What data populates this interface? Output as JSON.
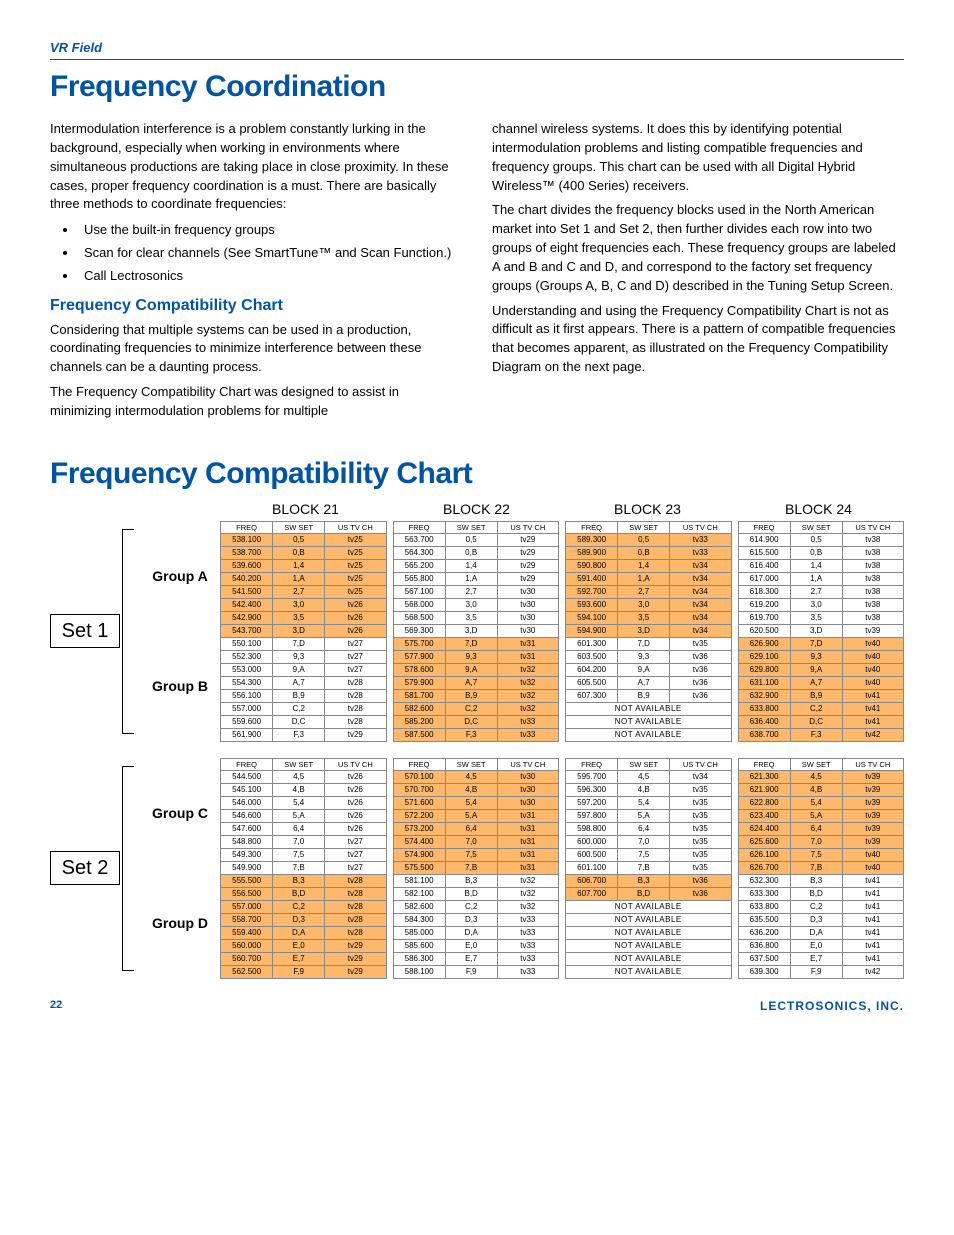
{
  "header": {
    "label": "VR Field"
  },
  "title1": "Frequency Coordination",
  "col_left": {
    "p1": "Intermodulation interference is a problem constantly lurking in the background, especially when working in environments where simultaneous productions are taking place in close proximity.  In these cases, proper frequency coordination is a must.  There are basically three methods to coordinate frequencies:",
    "bullets": [
      "Use the built-in frequency groups",
      "Scan for clear channels (See SmartTune™ and Scan Function.)",
      "Call Lectrosonics"
    ],
    "h2": "Frequency Compatibility Chart",
    "p2": "Considering that multiple systems can be used in a production, coordinating frequencies to minimize interference between these channels can be a daunting process.",
    "p3": "The Frequency Compatibility Chart was designed to assist in minimizing intermodulation problems for multiple"
  },
  "col_right": {
    "p1": "channel wireless systems.  It does this by identifying potential intermodulation problems and listing compatible  frequencies and frequency groups.  This chart can be used with all Digital Hybrid Wireless™ (400 Series) receivers.",
    "p2": "The chart divides the frequency blocks used in the North American market into Set 1 and Set 2, then further divides each row into two groups of eight frequencies each.  These frequency groups are labeled A and B and C and D, and correspond to the factory set frequency groups (Groups A, B, C and D) described in the Tuning Setup Screen.",
    "p3": "Understanding and using the Frequency Compatibility Chart is not as difficult as it first appears.  There is a pattern of compatible frequencies that becomes apparent, as illustrated on the Frequency Compatibility Diagram on the next page."
  },
  "title2": "Frequency Compatibility Chart",
  "block_labels": [
    "BLOCK 21",
    "BLOCK 22",
    "BLOCK 23",
    "BLOCK 24"
  ],
  "col_headers": [
    "FREQ",
    "SW SET",
    "US TV CH"
  ],
  "sets": [
    {
      "label": "Set 1",
      "groups": [
        "Group A",
        "Group B"
      ],
      "blocks": [
        {
          "hl": "A",
          "rows": [
            [
              "538.100",
              "0,5",
              "tv25"
            ],
            [
              "538.700",
              "0,B",
              "tv25"
            ],
            [
              "539.600",
              "1,4",
              "tv25"
            ],
            [
              "540.200",
              "1,A",
              "tv25"
            ],
            [
              "541.500",
              "2,7",
              "tv25"
            ],
            [
              "542.400",
              "3,0",
              "tv26"
            ],
            [
              "542.900",
              "3,5",
              "tv26"
            ],
            [
              "543.700",
              "3,D",
              "tv26"
            ],
            [
              "550.100",
              "7,D",
              "tv27"
            ],
            [
              "552.300",
              "9,3",
              "tv27"
            ],
            [
              "553.000",
              "9,A",
              "tv27"
            ],
            [
              "554.300",
              "A,7",
              "tv28"
            ],
            [
              "556.100",
              "B,9",
              "tv28"
            ],
            [
              "557.000",
              "C,2",
              "tv28"
            ],
            [
              "559.600",
              "D,C",
              "tv28"
            ],
            [
              "561.900",
              "F,3",
              "tv29"
            ]
          ]
        },
        {
          "hl": "B",
          "rows": [
            [
              "563.700",
              "0,5",
              "tv29"
            ],
            [
              "564.300",
              "0,B",
              "tv29"
            ],
            [
              "565.200",
              "1,4",
              "tv29"
            ],
            [
              "565.800",
              "1,A",
              "tv29"
            ],
            [
              "567.100",
              "2,7",
              "tv30"
            ],
            [
              "568.000",
              "3,0",
              "tv30"
            ],
            [
              "568.500",
              "3,5",
              "tv30"
            ],
            [
              "569.300",
              "3,D",
              "tv30"
            ],
            [
              "575.700",
              "7,D",
              "tv31"
            ],
            [
              "577.900",
              "9,3",
              "tv31"
            ],
            [
              "578.600",
              "9,A",
              "tv32"
            ],
            [
              "579.900",
              "A,7",
              "tv32"
            ],
            [
              "581.700",
              "B,9",
              "tv32"
            ],
            [
              "582.600",
              "C,2",
              "tv32"
            ],
            [
              "585.200",
              "D,C",
              "tv33"
            ],
            [
              "587.500",
              "F,3",
              "tv33"
            ]
          ]
        },
        {
          "hl": "A",
          "na": true,
          "rows": [
            [
              "589.300",
              "0,5",
              "tv33"
            ],
            [
              "589.900",
              "0,B",
              "tv33"
            ],
            [
              "590.800",
              "1,4",
              "tv34"
            ],
            [
              "591.400",
              "1,A",
              "tv34"
            ],
            [
              "592.700",
              "2,7",
              "tv34"
            ],
            [
              "593.600",
              "3,0",
              "tv34"
            ],
            [
              "594.100",
              "3,5",
              "tv34"
            ],
            [
              "594.900",
              "3,D",
              "tv34"
            ],
            [
              "601.300",
              "7,D",
              "tv35"
            ],
            [
              "603.500",
              "9,3",
              "tv36"
            ],
            [
              "604.200",
              "9,A",
              "tv36"
            ],
            [
              "605.500",
              "A,7",
              "tv36"
            ],
            [
              "607.300",
              "B,9",
              "tv36"
            ],
            [
              "NA"
            ],
            [
              "NA"
            ],
            [
              "NA"
            ]
          ]
        },
        {
          "hl": "B",
          "rows": [
            [
              "614.900",
              "0,5",
              "tv38"
            ],
            [
              "615.500",
              "0,B",
              "tv38"
            ],
            [
              "616.400",
              "1,4",
              "tv38"
            ],
            [
              "617.000",
              "1,A",
              "tv38"
            ],
            [
              "618.300",
              "2,7",
              "tv38"
            ],
            [
              "619.200",
              "3,0",
              "tv38"
            ],
            [
              "619.700",
              "3,5",
              "tv38"
            ],
            [
              "620.500",
              "3,D",
              "tv39"
            ],
            [
              "626.900",
              "7,D",
              "tv40"
            ],
            [
              "629.100",
              "9,3",
              "tv40"
            ],
            [
              "629.800",
              "9,A",
              "tv40"
            ],
            [
              "631.100",
              "A,7",
              "tv40"
            ],
            [
              "632.900",
              "B,9",
              "tv41"
            ],
            [
              "633.800",
              "C,2",
              "tv41"
            ],
            [
              "636.400",
              "D,C",
              "tv41"
            ],
            [
              "638.700",
              "F,3",
              "tv42"
            ]
          ]
        }
      ]
    },
    {
      "label": "Set 2",
      "groups": [
        "Group C",
        "Group D"
      ],
      "blocks": [
        {
          "hl": "B",
          "rows": [
            [
              "544.500",
              "4,5",
              "tv26"
            ],
            [
              "545.100",
              "4,B",
              "tv26"
            ],
            [
              "546.000",
              "5,4",
              "tv26"
            ],
            [
              "546.600",
              "5,A",
              "tv26"
            ],
            [
              "547.600",
              "6,4",
              "tv26"
            ],
            [
              "548.800",
              "7,0",
              "tv27"
            ],
            [
              "549.300",
              "7,5",
              "tv27"
            ],
            [
              "549.900",
              "7,B",
              "tv27"
            ],
            [
              "555.500",
              "B,3",
              "tv28"
            ],
            [
              "556.500",
              "B,D",
              "tv28"
            ],
            [
              "557.000",
              "C,2",
              "tv28"
            ],
            [
              "558.700",
              "D,3",
              "tv28"
            ],
            [
              "559.400",
              "D,A",
              "tv28"
            ],
            [
              "560.000",
              "E,0",
              "tv29"
            ],
            [
              "560.700",
              "E,7",
              "tv29"
            ],
            [
              "562.500",
              "F,9",
              "tv29"
            ]
          ]
        },
        {
          "hl": "A",
          "rows": [
            [
              "570.100",
              "4,5",
              "tv30"
            ],
            [
              "570.700",
              "4,B",
              "tv30"
            ],
            [
              "571.600",
              "5,4",
              "tv30"
            ],
            [
              "572.200",
              "5,A",
              "tv31"
            ],
            [
              "573.200",
              "6,4",
              "tv31"
            ],
            [
              "574.400",
              "7,0",
              "tv31"
            ],
            [
              "574.900",
              "7,5",
              "tv31"
            ],
            [
              "575.500",
              "7,B",
              "tv31"
            ],
            [
              "581.100",
              "B,3",
              "tv32"
            ],
            [
              "582.100",
              "B,D",
              "tv32"
            ],
            [
              "582.600",
              "C,2",
              "tv32"
            ],
            [
              "584.300",
              "D,3",
              "tv33"
            ],
            [
              "585.000",
              "D,A",
              "tv33"
            ],
            [
              "585.600",
              "E,0",
              "tv33"
            ],
            [
              "586.300",
              "E,7",
              "tv33"
            ],
            [
              "588.100",
              "F,9",
              "tv33"
            ]
          ]
        },
        {
          "hl": "B",
          "na23": true,
          "rows": [
            [
              "595.700",
              "4,5",
              "tv34"
            ],
            [
              "596.300",
              "4,B",
              "tv35"
            ],
            [
              "597.200",
              "5,4",
              "tv35"
            ],
            [
              "597.800",
              "5,A",
              "tv35"
            ],
            [
              "598.800",
              "6,4",
              "tv35"
            ],
            [
              "600.000",
              "7,0",
              "tv35"
            ],
            [
              "600.500",
              "7,5",
              "tv35"
            ],
            [
              "601.100",
              "7,B",
              "tv35"
            ],
            [
              "606.700",
              "B,3",
              "tv36"
            ],
            [
              "607.700",
              "B,D",
              "tv36"
            ],
            [
              "NA"
            ],
            [
              "NA"
            ],
            [
              "NA"
            ],
            [
              "NA"
            ],
            [
              "NA"
            ],
            [
              "NA"
            ]
          ]
        },
        {
          "hl": "A",
          "rows": [
            [
              "621.300",
              "4,5",
              "tv39"
            ],
            [
              "621.900",
              "4,B",
              "tv39"
            ],
            [
              "622.800",
              "5,4",
              "tv39"
            ],
            [
              "623.400",
              "5,A",
              "tv39"
            ],
            [
              "624.400",
              "6,4",
              "tv39"
            ],
            [
              "625.600",
              "7,0",
              "tv39"
            ],
            [
              "626.100",
              "7,5",
              "tv40"
            ],
            [
              "626.700",
              "7,B",
              "tv40"
            ],
            [
              "632.300",
              "B,3",
              "tv41"
            ],
            [
              "633.300",
              "B,D",
              "tv41"
            ],
            [
              "633.800",
              "C,2",
              "tv41"
            ],
            [
              "635.500",
              "D,3",
              "tv41"
            ],
            [
              "636.200",
              "D,A",
              "tv41"
            ],
            [
              "636.800",
              "E,0",
              "tv41"
            ],
            [
              "637.500",
              "E,7",
              "tv41"
            ],
            [
              "639.300",
              "F,9",
              "tv42"
            ]
          ]
        }
      ]
    }
  ],
  "na_text": "NOT AVAILABLE",
  "footer": {
    "page": "22",
    "company": "LECTROSONICS, INC."
  }
}
